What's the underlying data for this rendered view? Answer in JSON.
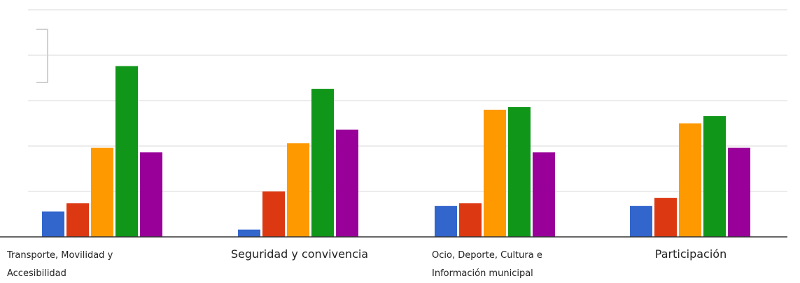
{
  "chart_data": {
    "type": "bar",
    "categories": [
      [
        "Transporte, Movilidad y",
        "Accesibilidad"
      ],
      [
        "Seguridad y convivencia"
      ],
      [
        "Ocio, Deporte, Cultura e",
        "Información municipal"
      ],
      [
        "Participación"
      ]
    ],
    "series": [
      {
        "color": "#3366cc",
        "values": [
          2.8,
          0.8,
          3.4,
          3.4
        ]
      },
      {
        "color": "#dc3912",
        "values": [
          3.7,
          5.0,
          3.7,
          4.3
        ]
      },
      {
        "color": "#ff9900",
        "values": [
          9.8,
          10.3,
          14.0,
          12.5
        ]
      },
      {
        "color": "#109618",
        "values": [
          18.8,
          16.3,
          14.3,
          13.3
        ]
      },
      {
        "color": "#990099",
        "values": [
          9.3,
          11.8,
          9.3,
          9.8
        ]
      }
    ],
    "ylim": [
      0,
      25
    ],
    "grid": true,
    "legend": "none"
  }
}
